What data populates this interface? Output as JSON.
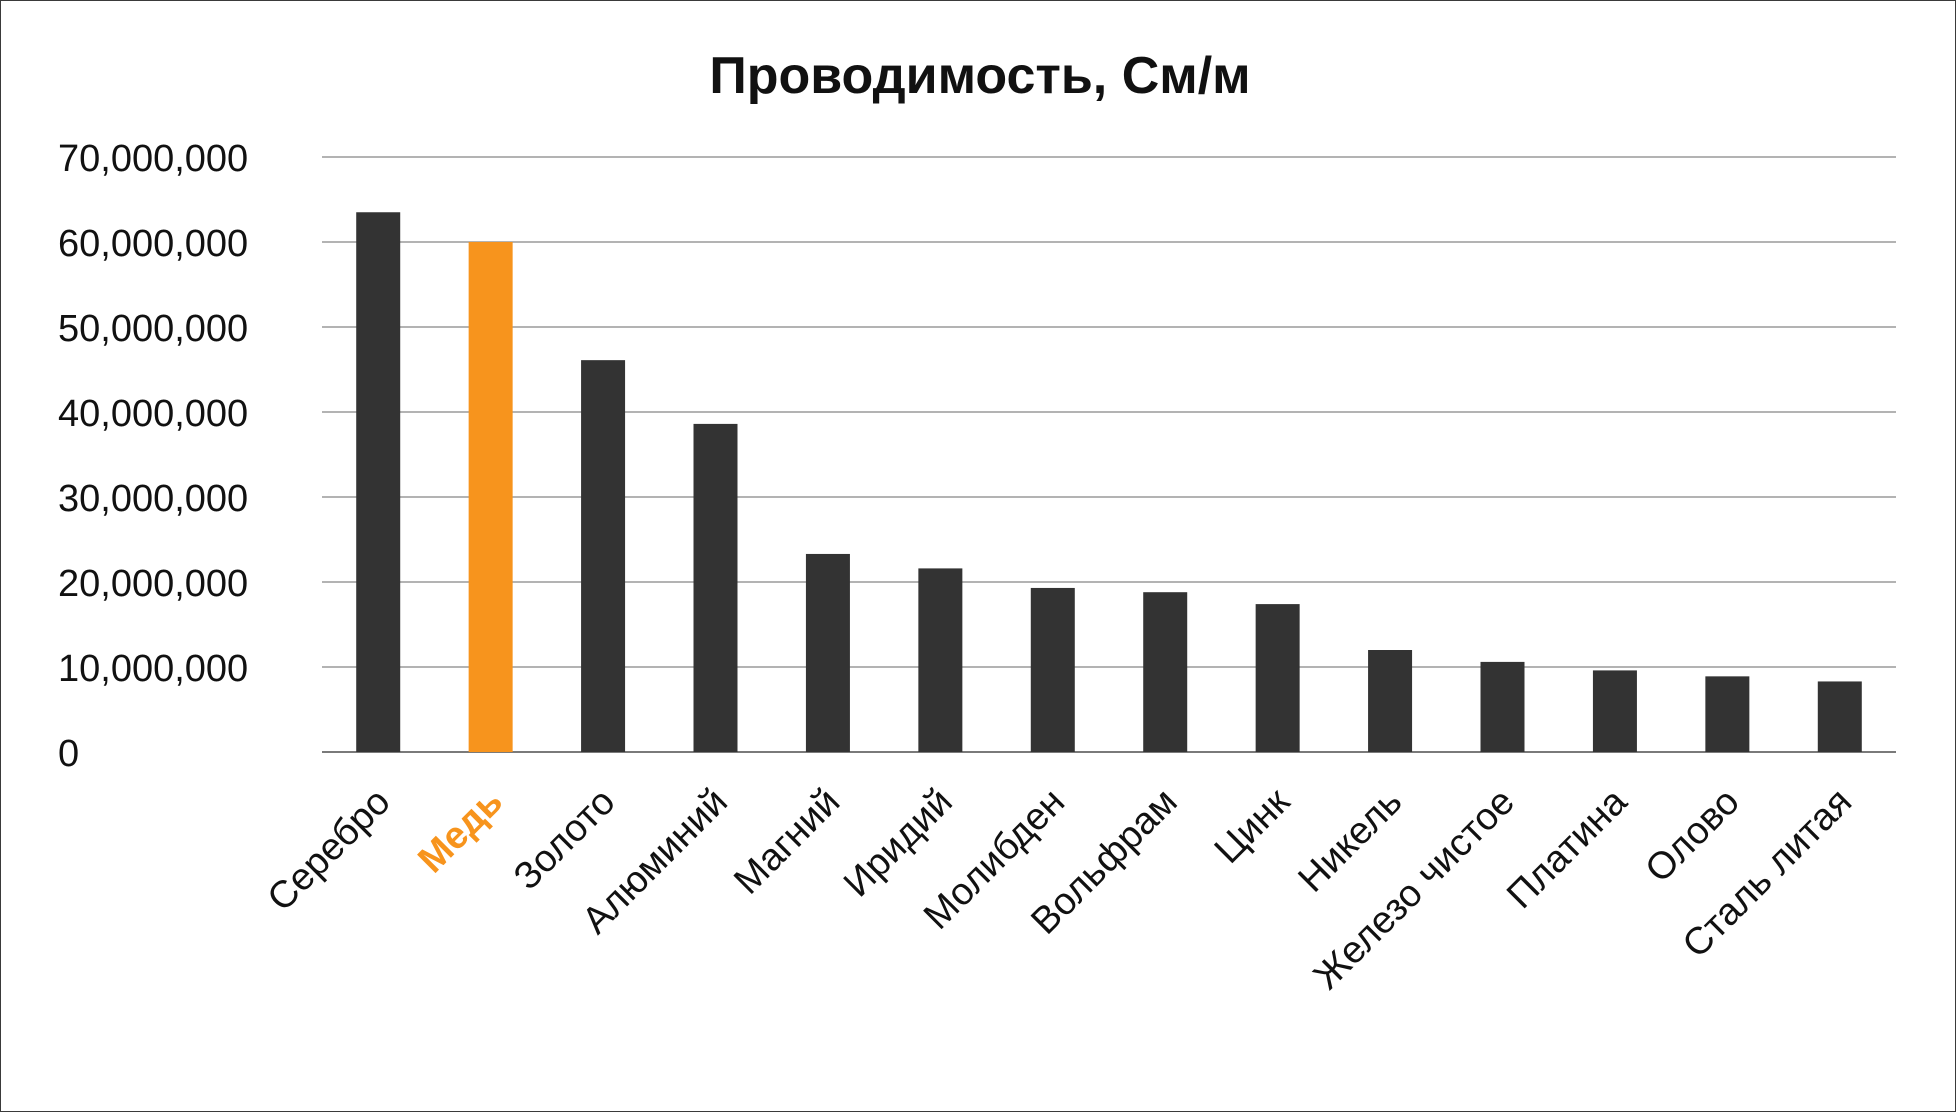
{
  "chart_data": {
    "type": "bar",
    "title": "Проводимость, См/м",
    "xlabel": "",
    "ylabel": "",
    "ylim": [
      0,
      70000000
    ],
    "yticks": [
      0,
      10000000,
      20000000,
      30000000,
      40000000,
      50000000,
      60000000,
      70000000
    ],
    "ytick_labels": [
      "0",
      "10,000,000",
      "20,000,000",
      "30,000,000",
      "40,000,000",
      "50,000,000",
      "60,000,000",
      "70,000,000"
    ],
    "grid": true,
    "categories": [
      "Серебро",
      "Медь",
      "Золото",
      "Алюминий",
      "Магний",
      "Иридий",
      "Молибден",
      "Вольфрам",
      "Цинк",
      "Никель",
      "Железо чистое",
      "Платина",
      "Олово",
      "Сталь литая"
    ],
    "values": [
      63500000,
      60000000,
      46100000,
      38600000,
      23300000,
      21600000,
      19300000,
      18800000,
      17400000,
      12000000,
      10600000,
      9600000,
      8900000,
      8300000
    ],
    "highlight_index": 1,
    "colors": {
      "bar": "#333333",
      "highlight": "#f7941d"
    }
  }
}
